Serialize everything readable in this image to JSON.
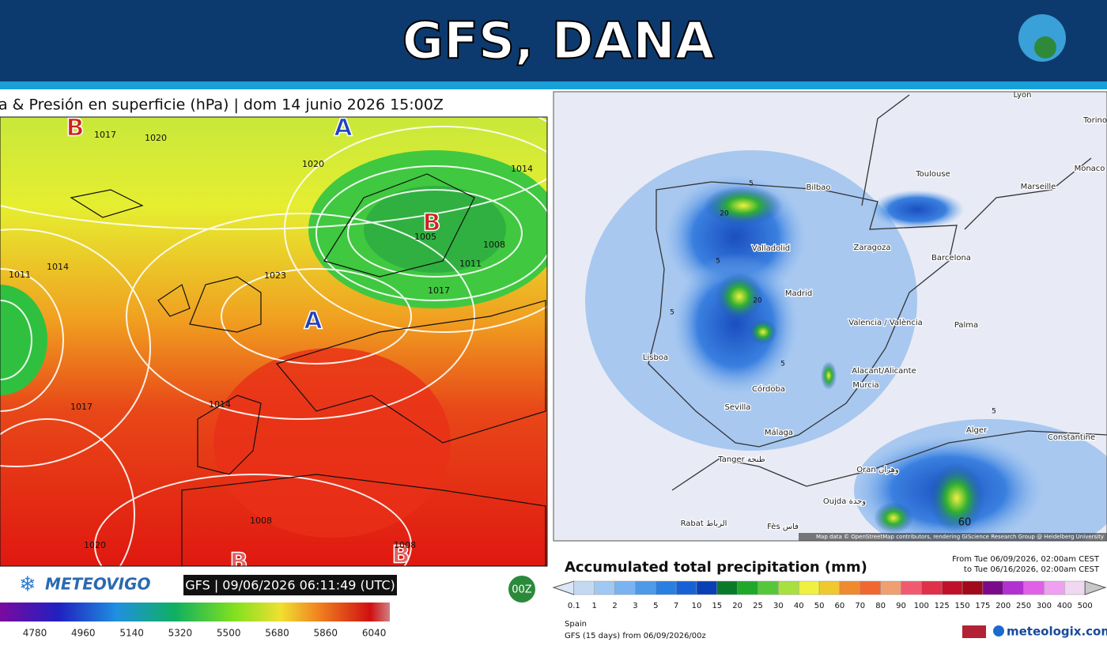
{
  "header": {
    "title": "GFS, DANA"
  },
  "left_map": {
    "title": "a & Presión en superficie (hPa) | dom 14 junio 2026 15:00Z",
    "pressure_centers": [
      "B",
      "A",
      "B",
      "A",
      "B",
      "B"
    ],
    "isobar_labels": [
      "1017",
      "1020",
      "1020",
      "1014",
      "1005",
      "1008",
      "1011",
      "1011",
      "1014",
      "1023",
      "1017",
      "1017",
      "1014",
      "1008",
      "1020",
      "1008"
    ],
    "brand": "METEOVIGO",
    "timestamp": "GFS | 09/06/2026 06:11:49 (UTC)",
    "run_badge": "00Z",
    "colorbar_ticks": [
      4780,
      4960,
      5140,
      5320,
      5500,
      5680,
      5860,
      6040
    ]
  },
  "right_map": {
    "cities": [
      "Lyon",
      "Torino",
      "Monaco",
      "Toulouse",
      "Marseille",
      "Bilbao",
      "Zaragoza",
      "Barcelona",
      "Valladolid",
      "Madrid",
      "Valencia / València",
      "Palma",
      "Lisboa",
      "Alacant/Alicante",
      "Murcia",
      "Córdoba",
      "Sevilla",
      "Málaga",
      "Alger",
      "Constantine",
      "Tanger طنجة",
      "Oran وهران",
      "Oujda وجدة",
      "Rabat الرباط",
      "Fès فاس"
    ],
    "contour_labels": [
      "5",
      "20",
      "5",
      "5",
      "20",
      "5",
      "5",
      "60"
    ],
    "attribution": "Map data © OpenStreetMap contributors, rendering GIScience Research Group @ Heidelberg University"
  },
  "legend": {
    "title": "Accumulated total precipitation (mm)",
    "range_from": "From Tue 06/09/2026, 02:00am CEST",
    "range_to": "to Tue 06/16/2026, 02:00am CEST",
    "ticks": [
      0.1,
      1,
      2,
      3,
      5,
      7,
      10,
      15,
      20,
      25,
      30,
      40,
      50,
      60,
      70,
      80,
      90,
      100,
      125,
      150,
      175,
      200,
      250,
      300,
      400,
      500
    ],
    "colors": [
      "#dde6f4",
      "#c4d8f2",
      "#9fc8f2",
      "#7ab3f0",
      "#4f9ae8",
      "#2a7fe0",
      "#1662d4",
      "#0b3fb4",
      "#0a7a2a",
      "#21a82a",
      "#55c83a",
      "#a8e040",
      "#f0f040",
      "#f0c830",
      "#f08a30",
      "#f06830",
      "#f0a070",
      "#f05a70",
      "#e0304a",
      "#c0102a",
      "#a00a1a",
      "#7a0a8a",
      "#b030d0",
      "#e060e8",
      "#f0a0f0",
      "#f0d8f0",
      "#c8c8c8"
    ],
    "region": "Spain",
    "model": "GFS (15 days) from  06/09/2026/00z",
    "brand": "meteologix.com"
  }
}
